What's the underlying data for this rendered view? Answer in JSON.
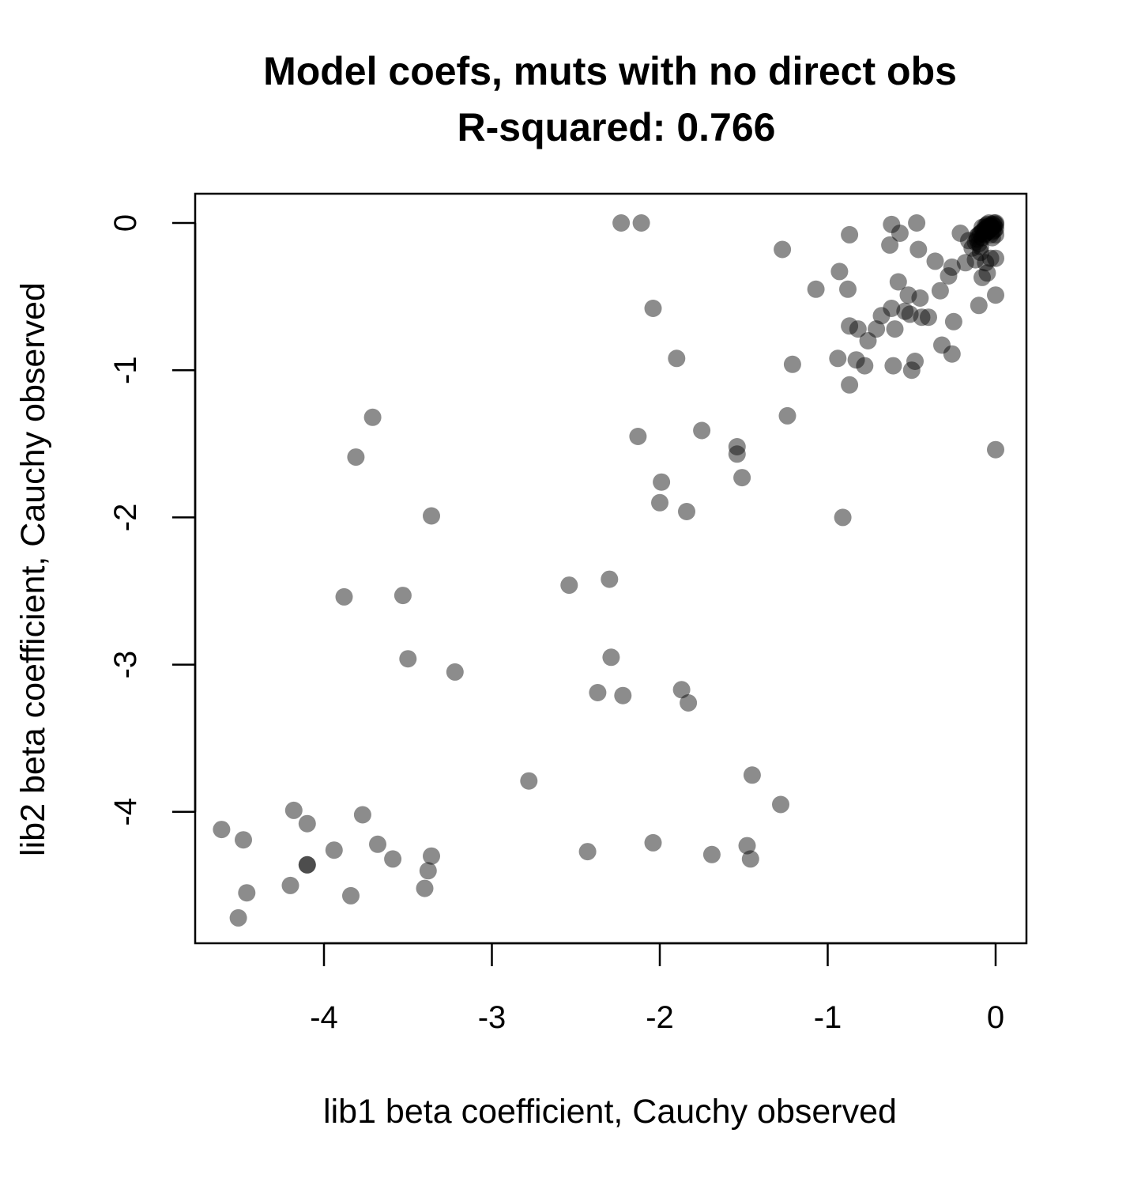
{
  "chart_data": {
    "type": "scatter",
    "title": "Model coefs, muts with no direct obs",
    "subtitle": "R-squared: 0.766",
    "xlabel": "lib1 beta coefficient, Cauchy observed",
    "ylabel": "lib2 beta coefficient, Cauchy observed",
    "xlim": [
      -4.8,
      0.2
    ],
    "ylim": [
      -4.9,
      0.2
    ],
    "xticks": [
      -4,
      -3,
      -2,
      -1,
      0
    ],
    "yticks": [
      0,
      -1,
      -2,
      -3,
      -4
    ],
    "xtick_labels": [
      "-4",
      "-3",
      "-2",
      "-1",
      "0"
    ],
    "ytick_labels": [
      "0",
      "-1",
      "-2",
      "-3",
      "-4"
    ],
    "grid": false,
    "legend": "none",
    "point_color": "#000000",
    "point_alpha": 0.45,
    "points": [
      [
        -2.23,
        0.0
      ],
      [
        -2.11,
        0.0
      ],
      [
        -1.27,
        -0.18
      ],
      [
        -2.04,
        -0.58
      ],
      [
        -1.9,
        -0.92
      ],
      [
        -1.21,
        -0.96
      ],
      [
        -1.07,
        -0.45
      ],
      [
        -0.62,
        -0.01
      ],
      [
        -0.47,
        0.0
      ],
      [
        -0.87,
        -0.08
      ],
      [
        -0.57,
        -0.07
      ],
      [
        -0.63,
        -0.15
      ],
      [
        -0.46,
        -0.18
      ],
      [
        -0.36,
        -0.26
      ],
      [
        -0.26,
        -0.3
      ],
      [
        -0.16,
        -0.12
      ],
      [
        -0.11,
        -0.09
      ],
      [
        -0.09,
        -0.2
      ],
      [
        -0.08,
        -0.37
      ],
      [
        -0.06,
        -0.27
      ],
      [
        -0.05,
        -0.34
      ],
      [
        -0.03,
        -0.24
      ],
      [
        0.0,
        -0.24
      ],
      [
        0.0,
        -0.49
      ],
      [
        -0.1,
        -0.56
      ],
      [
        -0.21,
        -0.07
      ],
      [
        -0.18,
        -0.27
      ],
      [
        -0.12,
        -0.25
      ],
      [
        -0.93,
        -0.33
      ],
      [
        -0.88,
        -0.45
      ],
      [
        -0.58,
        -0.4
      ],
      [
        -0.52,
        -0.49
      ],
      [
        -0.45,
        -0.51
      ],
      [
        -0.33,
        -0.46
      ],
      [
        -0.28,
        -0.36
      ],
      [
        -0.25,
        -0.67
      ],
      [
        -0.54,
        -0.6
      ],
      [
        -0.51,
        -0.62
      ],
      [
        -0.44,
        -0.64
      ],
      [
        -0.4,
        -0.64
      ],
      [
        -0.62,
        -0.58
      ],
      [
        -0.68,
        -0.63
      ],
      [
        -0.6,
        -0.72
      ],
      [
        -0.71,
        -0.72
      ],
      [
        -0.76,
        -0.8
      ],
      [
        -0.87,
        -0.7
      ],
      [
        -0.82,
        -0.72
      ],
      [
        -0.83,
        -0.93
      ],
      [
        -0.94,
        -0.92
      ],
      [
        -0.78,
        -0.97
      ],
      [
        -0.61,
        -0.97
      ],
      [
        -0.5,
        -1.0
      ],
      [
        -0.48,
        -0.94
      ],
      [
        -0.32,
        -0.83
      ],
      [
        -0.26,
        -0.89
      ],
      [
        -0.87,
        -1.1
      ],
      [
        -1.24,
        -1.31
      ],
      [
        -2.13,
        -1.45
      ],
      [
        -1.75,
        -1.41
      ],
      [
        -1.54,
        -1.52
      ],
      [
        -1.54,
        -1.57
      ],
      [
        -1.51,
        -1.73
      ],
      [
        -1.99,
        -1.76
      ],
      [
        -2.0,
        -1.9
      ],
      [
        -1.84,
        -1.96
      ],
      [
        -0.91,
        -2.0
      ],
      [
        0.0,
        -1.54
      ],
      [
        -3.71,
        -1.32
      ],
      [
        -3.81,
        -1.59
      ],
      [
        -3.36,
        -1.99
      ],
      [
        -3.88,
        -2.54
      ],
      [
        -3.53,
        -2.53
      ],
      [
        -2.54,
        -2.46
      ],
      [
        -2.3,
        -2.42
      ],
      [
        -3.5,
        -2.96
      ],
      [
        -3.22,
        -3.05
      ],
      [
        -2.29,
        -2.95
      ],
      [
        -2.37,
        -3.19
      ],
      [
        -2.22,
        -3.21
      ],
      [
        -1.87,
        -3.17
      ],
      [
        -1.83,
        -3.26
      ],
      [
        -2.78,
        -3.79
      ],
      [
        -1.45,
        -3.75
      ],
      [
        -1.28,
        -3.95
      ],
      [
        -4.18,
        -3.99
      ],
      [
        -4.1,
        -4.08
      ],
      [
        -3.77,
        -4.02
      ],
      [
        -4.61,
        -4.12
      ],
      [
        -4.48,
        -4.19
      ],
      [
        -3.94,
        -4.26
      ],
      [
        -3.68,
        -4.22
      ],
      [
        -3.59,
        -4.32
      ],
      [
        -3.36,
        -4.3
      ],
      [
        -3.38,
        -4.4
      ],
      [
        -4.1,
        -4.36
      ],
      [
        -4.1,
        -4.36
      ],
      [
        -4.2,
        -4.5
      ],
      [
        -4.46,
        -4.55
      ],
      [
        -4.51,
        -4.72
      ],
      [
        -3.84,
        -4.57
      ],
      [
        -3.4,
        -4.52
      ],
      [
        -2.43,
        -4.27
      ],
      [
        -2.04,
        -4.21
      ],
      [
        -1.69,
        -4.29
      ],
      [
        -1.48,
        -4.23
      ],
      [
        -1.46,
        -4.32
      ],
      [
        0.0,
        0.0
      ],
      [
        -0.01,
        0.0
      ],
      [
        0.0,
        -0.01
      ],
      [
        -0.02,
        -0.01
      ],
      [
        -0.01,
        -0.02
      ],
      [
        -0.03,
        -0.02
      ],
      [
        -0.02,
        -0.03
      ],
      [
        -0.04,
        -0.02
      ],
      [
        -0.03,
        -0.04
      ],
      [
        -0.05,
        -0.03
      ],
      [
        -0.04,
        -0.05
      ],
      [
        -0.06,
        -0.04
      ],
      [
        -0.05,
        -0.06
      ],
      [
        -0.07,
        -0.05
      ],
      [
        -0.06,
        -0.07
      ],
      [
        -0.08,
        -0.06
      ],
      [
        -0.07,
        -0.08
      ],
      [
        -0.09,
        -0.07
      ],
      [
        -0.08,
        -0.1
      ],
      [
        -0.1,
        -0.08
      ],
      [
        -0.02,
        -0.06
      ],
      [
        -0.06,
        -0.02
      ],
      [
        -0.01,
        -0.05
      ],
      [
        -0.05,
        -0.01
      ],
      [
        -0.03,
        -0.08
      ],
      [
        -0.08,
        -0.03
      ],
      [
        0.0,
        -0.04
      ],
      [
        -0.04,
        0.0
      ],
      [
        -0.11,
        -0.11
      ],
      [
        -0.12,
        -0.13
      ],
      [
        0.0,
        -0.08
      ],
      [
        -0.02,
        -0.1
      ],
      [
        -0.1,
        -0.14
      ],
      [
        -0.14,
        -0.17
      ],
      [
        -0.09,
        -0.16
      ]
    ]
  }
}
